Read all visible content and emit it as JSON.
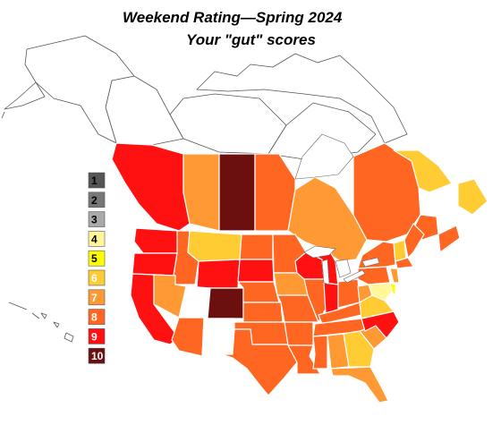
{
  "title": "Weekend Rating—Spring 2024",
  "subtitle": "Your \"gut\" scores",
  "legend": [
    {
      "label": "1",
      "color": "#555555",
      "text_color": "#000000"
    },
    {
      "label": "2",
      "color": "#777777",
      "text_color": "#000000"
    },
    {
      "label": "3",
      "color": "#aaaaaa",
      "text_color": "#000000"
    },
    {
      "label": "4",
      "color": "#fff79a",
      "text_color": "#000000"
    },
    {
      "label": "5",
      "color": "#ffff00",
      "text_color": "#000000"
    },
    {
      "label": "6",
      "color": "#ffcc33",
      "text_color": "#ffffff"
    },
    {
      "label": "7",
      "color": "#ff9933",
      "text_color": "#ffffff"
    },
    {
      "label": "8",
      "color": "#ff6622",
      "text_color": "#ffffff"
    },
    {
      "label": "9",
      "color": "#ff1111",
      "text_color": "#ffffff"
    },
    {
      "label": "10",
      "color": "#6b0f0f",
      "text_color": "#ffffff"
    }
  ],
  "no_rating_color": "#ffffff",
  "regions": [
    {
      "id": "british-columbia",
      "score": 9
    },
    {
      "id": "alberta",
      "score": 7
    },
    {
      "id": "saskatchewan",
      "score": 10
    },
    {
      "id": "manitoba",
      "score": 8
    },
    {
      "id": "ontario",
      "score": 7
    },
    {
      "id": "quebec",
      "score": 8
    },
    {
      "id": "labrador",
      "score": 6
    },
    {
      "id": "newfoundland",
      "score": 6
    },
    {
      "id": "new-brunswick",
      "score": 8
    },
    {
      "id": "nova-scotia",
      "score": 8
    },
    {
      "id": "washington",
      "score": 9
    },
    {
      "id": "oregon",
      "score": 9
    },
    {
      "id": "california",
      "score": 9
    },
    {
      "id": "idaho",
      "score": 8
    },
    {
      "id": "nevada",
      "score": 7
    },
    {
      "id": "montana",
      "score": 6
    },
    {
      "id": "wyoming",
      "score": 9
    },
    {
      "id": "utah",
      "score": null
    },
    {
      "id": "colorado",
      "score": 10
    },
    {
      "id": "arizona",
      "score": 8
    },
    {
      "id": "new-mexico",
      "score": null
    },
    {
      "id": "north-dakota",
      "score": 8
    },
    {
      "id": "south-dakota",
      "score": 9
    },
    {
      "id": "nebraska",
      "score": 8
    },
    {
      "id": "kansas",
      "score": 8
    },
    {
      "id": "oklahoma",
      "score": 8
    },
    {
      "id": "texas",
      "score": 8
    },
    {
      "id": "minnesota",
      "score": 8
    },
    {
      "id": "iowa",
      "score": 7
    },
    {
      "id": "missouri",
      "score": 8
    },
    {
      "id": "arkansas",
      "score": 8
    },
    {
      "id": "louisiana",
      "score": 8
    },
    {
      "id": "wisconsin",
      "score": 9
    },
    {
      "id": "illinois",
      "score": 8
    },
    {
      "id": "michigan",
      "score": 9
    },
    {
      "id": "indiana",
      "score": 9
    },
    {
      "id": "ohio",
      "score": 8
    },
    {
      "id": "kentucky",
      "score": 8
    },
    {
      "id": "tennessee",
      "score": 8
    },
    {
      "id": "mississippi",
      "score": 8
    },
    {
      "id": "alabama",
      "score": 7
    },
    {
      "id": "georgia",
      "score": 6
    },
    {
      "id": "florida",
      "score": 7
    },
    {
      "id": "south-carolina",
      "score": 7
    },
    {
      "id": "north-carolina",
      "score": 9
    },
    {
      "id": "virginia",
      "score": 6
    },
    {
      "id": "west-virginia",
      "score": 7
    },
    {
      "id": "pennsylvania",
      "score": 8
    },
    {
      "id": "new-york",
      "score": 8
    },
    {
      "id": "maryland",
      "score": 4
    },
    {
      "id": "delaware",
      "score": 5
    },
    {
      "id": "new-jersey",
      "score": 7
    },
    {
      "id": "new-england",
      "score": 8
    },
    {
      "id": "maine",
      "score": 8
    },
    {
      "id": "vermont-nh",
      "score": 6
    }
  ]
}
